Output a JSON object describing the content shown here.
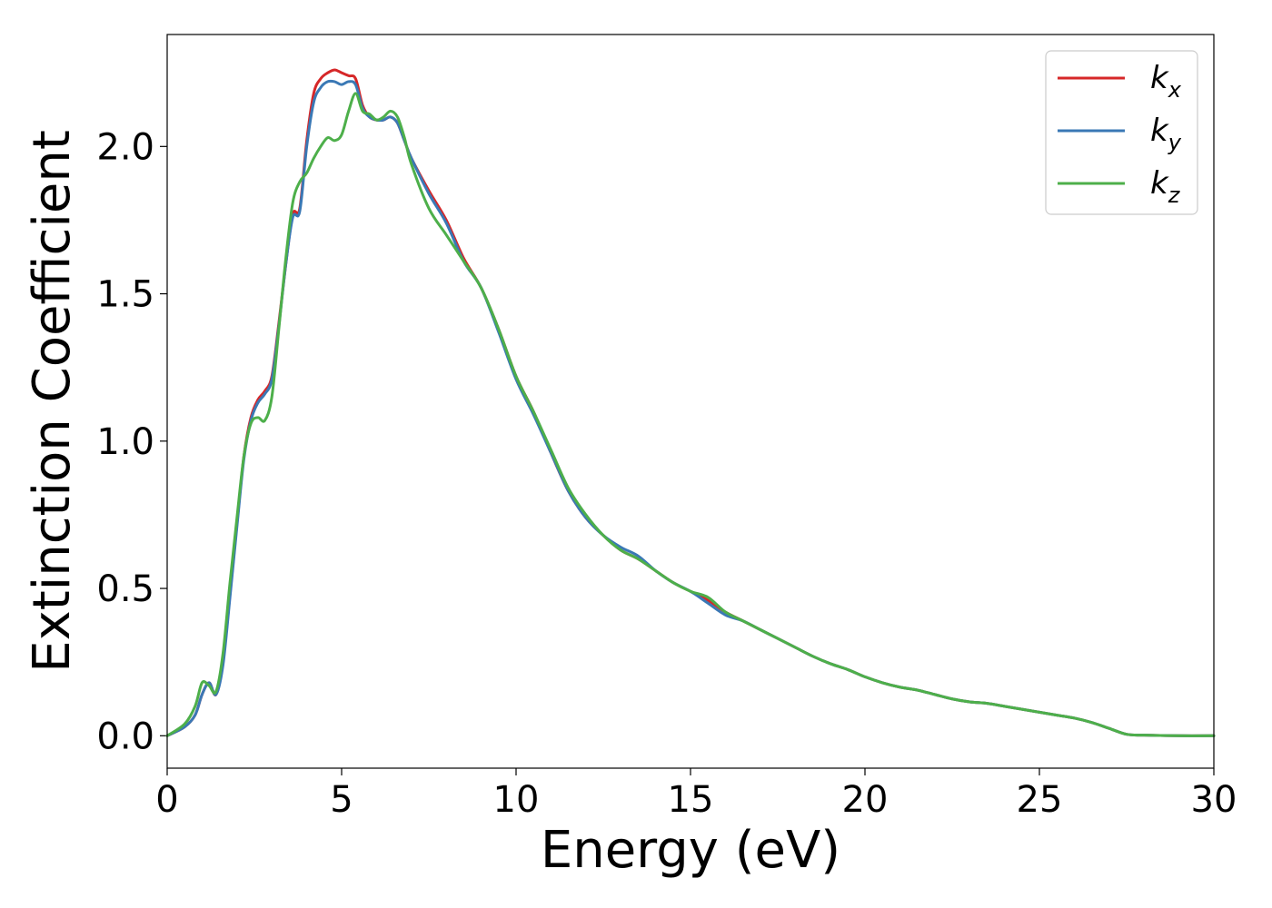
{
  "chart_data": {
    "type": "line",
    "title": "",
    "xlabel": "Energy (eV)",
    "ylabel": "Extinction Coefficient",
    "xlim": [
      0,
      30
    ],
    "ylim": [
      -0.11,
      2.38
    ],
    "xticks": [
      0,
      5,
      10,
      15,
      20,
      25,
      30
    ],
    "xtick_labels": [
      "0",
      "5",
      "10",
      "15",
      "20",
      "25",
      "30"
    ],
    "yticks": [
      0.0,
      0.5,
      1.0,
      1.5,
      2.0
    ],
    "ytick_labels": [
      "0.0",
      "0.5",
      "1.0",
      "1.5",
      "2.0"
    ],
    "grid": false,
    "legend_position": "top-right",
    "series": [
      {
        "name": "k_x",
        "label_base": "k",
        "label_sub": "x",
        "color": "#d62728",
        "x": [
          0,
          0.5,
          0.8,
          1.0,
          1.2,
          1.4,
          1.6,
          1.8,
          2.0,
          2.2,
          2.4,
          2.6,
          2.8,
          3.0,
          3.2,
          3.4,
          3.6,
          3.8,
          4.0,
          4.2,
          4.4,
          4.6,
          4.8,
          5.0,
          5.2,
          5.4,
          5.6,
          5.8,
          6.0,
          6.2,
          6.4,
          6.6,
          6.8,
          7.0,
          7.5,
          8.0,
          8.5,
          9.0,
          9.5,
          10.0,
          10.5,
          11.0,
          11.5,
          12.0,
          12.5,
          13.0,
          13.5,
          14.0,
          14.5,
          15.0,
          15.5,
          16.0,
          16.5,
          17.0,
          17.5,
          18.0,
          18.5,
          19.0,
          19.5,
          20.0,
          20.5,
          21.0,
          21.5,
          22.0,
          22.5,
          23.0,
          23.5,
          24.0,
          24.5,
          25.0,
          25.5,
          26.0,
          26.5,
          27.0,
          27.5,
          28.0,
          29.0,
          30.0
        ],
        "y": [
          0.0,
          0.03,
          0.07,
          0.14,
          0.18,
          0.14,
          0.25,
          0.48,
          0.72,
          0.95,
          1.08,
          1.14,
          1.17,
          1.22,
          1.4,
          1.6,
          1.77,
          1.79,
          2.02,
          2.18,
          2.23,
          2.25,
          2.26,
          2.25,
          2.24,
          2.23,
          2.14,
          2.1,
          2.09,
          2.09,
          2.1,
          2.08,
          2.02,
          1.96,
          1.85,
          1.75,
          1.62,
          1.52,
          1.38,
          1.22,
          1.1,
          0.96,
          0.83,
          0.74,
          0.68,
          0.63,
          0.6,
          0.56,
          0.52,
          0.49,
          0.46,
          0.42,
          0.39,
          0.36,
          0.33,
          0.3,
          0.27,
          0.245,
          0.225,
          0.2,
          0.18,
          0.165,
          0.155,
          0.14,
          0.125,
          0.115,
          0.11,
          0.1,
          0.09,
          0.08,
          0.07,
          0.06,
          0.045,
          0.025,
          0.005,
          0.002,
          0.0,
          0.0
        ]
      },
      {
        "name": "k_y",
        "label_base": "k",
        "label_sub": "y",
        "color": "#3a78b5",
        "x": [
          0,
          0.5,
          0.8,
          1.0,
          1.2,
          1.4,
          1.6,
          1.8,
          2.0,
          2.2,
          2.4,
          2.6,
          2.8,
          3.0,
          3.2,
          3.4,
          3.6,
          3.8,
          4.0,
          4.2,
          4.4,
          4.6,
          4.8,
          5.0,
          5.2,
          5.4,
          5.6,
          5.8,
          6.0,
          6.2,
          6.4,
          6.6,
          6.8,
          7.0,
          7.5,
          8.0,
          8.5,
          9.0,
          9.5,
          10.0,
          10.5,
          11.0,
          11.5,
          12.0,
          12.5,
          13.0,
          13.5,
          14.0,
          14.5,
          15.0,
          15.5,
          16.0,
          16.5,
          17.0,
          17.5,
          18.0,
          18.5,
          19.0,
          19.5,
          20.0,
          20.5,
          21.0,
          21.5,
          22.0,
          22.5,
          23.0,
          23.5,
          24.0,
          24.5,
          25.0,
          25.5,
          26.0,
          26.5,
          27.0,
          27.5,
          28.0,
          29.0,
          30.0
        ],
        "y": [
          0.0,
          0.03,
          0.07,
          0.14,
          0.18,
          0.14,
          0.24,
          0.47,
          0.71,
          0.94,
          1.07,
          1.13,
          1.16,
          1.21,
          1.39,
          1.6,
          1.76,
          1.78,
          2.0,
          2.15,
          2.2,
          2.22,
          2.22,
          2.21,
          2.22,
          2.21,
          2.13,
          2.1,
          2.09,
          2.09,
          2.1,
          2.08,
          2.02,
          1.96,
          1.84,
          1.74,
          1.61,
          1.52,
          1.37,
          1.21,
          1.09,
          0.96,
          0.83,
          0.74,
          0.68,
          0.64,
          0.61,
          0.56,
          0.52,
          0.49,
          0.45,
          0.41,
          0.39,
          0.36,
          0.33,
          0.3,
          0.27,
          0.245,
          0.225,
          0.2,
          0.18,
          0.165,
          0.155,
          0.14,
          0.125,
          0.115,
          0.11,
          0.1,
          0.09,
          0.08,
          0.07,
          0.06,
          0.045,
          0.025,
          0.005,
          0.002,
          0.0,
          0.0
        ]
      },
      {
        "name": "k_z",
        "label_base": "k",
        "label_sub": "z",
        "color": "#4daf4a",
        "x": [
          0,
          0.5,
          0.8,
          1.0,
          1.2,
          1.4,
          1.6,
          1.8,
          2.0,
          2.2,
          2.4,
          2.6,
          2.8,
          3.0,
          3.2,
          3.4,
          3.6,
          3.8,
          4.0,
          4.2,
          4.4,
          4.6,
          4.8,
          5.0,
          5.2,
          5.4,
          5.6,
          5.8,
          6.0,
          6.2,
          6.4,
          6.6,
          6.8,
          7.0,
          7.5,
          8.0,
          8.5,
          9.0,
          9.5,
          10.0,
          10.5,
          11.0,
          11.5,
          12.0,
          12.5,
          13.0,
          13.5,
          14.0,
          14.5,
          15.0,
          15.5,
          16.0,
          16.5,
          17.0,
          17.5,
          18.0,
          18.5,
          19.0,
          19.5,
          20.0,
          20.5,
          21.0,
          21.5,
          22.0,
          22.5,
          23.0,
          23.5,
          24.0,
          24.5,
          25.0,
          25.5,
          26.0,
          26.5,
          27.0,
          27.5,
          28.0,
          29.0,
          30.0
        ],
        "y": [
          0.0,
          0.04,
          0.1,
          0.18,
          0.17,
          0.15,
          0.28,
          0.52,
          0.74,
          0.95,
          1.06,
          1.08,
          1.07,
          1.15,
          1.38,
          1.62,
          1.81,
          1.88,
          1.91,
          1.96,
          2.0,
          2.03,
          2.02,
          2.04,
          2.12,
          2.18,
          2.12,
          2.11,
          2.09,
          2.1,
          2.12,
          2.1,
          2.03,
          1.94,
          1.79,
          1.7,
          1.61,
          1.52,
          1.38,
          1.22,
          1.1,
          0.97,
          0.84,
          0.75,
          0.68,
          0.63,
          0.6,
          0.56,
          0.52,
          0.49,
          0.47,
          0.42,
          0.39,
          0.36,
          0.33,
          0.3,
          0.27,
          0.245,
          0.225,
          0.2,
          0.18,
          0.165,
          0.155,
          0.14,
          0.125,
          0.115,
          0.11,
          0.1,
          0.09,
          0.08,
          0.07,
          0.06,
          0.045,
          0.025,
          0.005,
          0.002,
          0.0,
          0.0
        ]
      }
    ]
  }
}
